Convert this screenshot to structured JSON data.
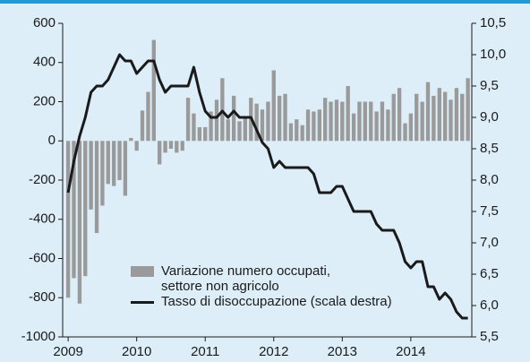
{
  "chart_data": {
    "type": "bar-line",
    "x": [
      2009.0,
      2009.083,
      2009.167,
      2009.25,
      2009.333,
      2009.417,
      2009.5,
      2009.583,
      2009.667,
      2009.75,
      2009.833,
      2009.917,
      2010.0,
      2010.083,
      2010.167,
      2010.25,
      2010.333,
      2010.417,
      2010.5,
      2010.583,
      2010.667,
      2010.75,
      2010.833,
      2010.917,
      2011.0,
      2011.083,
      2011.167,
      2011.25,
      2011.333,
      2011.417,
      2011.5,
      2011.583,
      2011.667,
      2011.75,
      2011.833,
      2011.917,
      2012.0,
      2012.083,
      2012.167,
      2012.25,
      2012.333,
      2012.417,
      2012.5,
      2012.583,
      2012.667,
      2012.75,
      2012.833,
      2012.917,
      2013.0,
      2013.083,
      2013.167,
      2013.25,
      2013.333,
      2013.417,
      2013.5,
      2013.583,
      2013.667,
      2013.75,
      2013.833,
      2013.917,
      2014.0,
      2014.083,
      2014.167,
      2014.25,
      2014.333,
      2014.417,
      2014.5,
      2014.583,
      2014.667,
      2014.75,
      2014.833
    ],
    "series": [
      {
        "name": "Variazione numero occupati, settore non agricolo",
        "kind": "bar",
        "color": "#9a9a9a",
        "values": [
          -800,
          -700,
          -830,
          -690,
          -350,
          -470,
          -330,
          -220,
          -230,
          -200,
          -280,
          15,
          -50,
          155,
          250,
          515,
          -120,
          -60,
          -40,
          -60,
          -50,
          220,
          140,
          70,
          70,
          150,
          210,
          320,
          110,
          230,
          100,
          120,
          220,
          190,
          160,
          200,
          360,
          230,
          240,
          90,
          110,
          80,
          160,
          150,
          160,
          220,
          200,
          210,
          200,
          280,
          140,
          200,
          200,
          200,
          150,
          200,
          160,
          240,
          270,
          90,
          140,
          240,
          200,
          300,
          230,
          270,
          250,
          210,
          270,
          240,
          320
        ]
      },
      {
        "name": "Tasso di disoccupazione (scala destra)",
        "kind": "line",
        "color": "#1a1a1a",
        "axis": "y2",
        "values": [
          7.8,
          8.3,
          8.7,
          9.0,
          9.4,
          9.5,
          9.5,
          9.6,
          9.8,
          10.0,
          9.9,
          9.9,
          9.7,
          9.8,
          9.9,
          9.9,
          9.6,
          9.4,
          9.5,
          9.5,
          9.5,
          9.5,
          9.8,
          9.4,
          9.1,
          9.0,
          9.0,
          9.1,
          9.0,
          9.1,
          9.0,
          9.0,
          9.0,
          8.8,
          8.6,
          8.5,
          8.2,
          8.3,
          8.2,
          8.2,
          8.2,
          8.2,
          8.2,
          8.1,
          7.8,
          7.8,
          7.8,
          7.9,
          7.9,
          7.7,
          7.5,
          7.5,
          7.5,
          7.5,
          7.3,
          7.2,
          7.2,
          7.2,
          7.0,
          6.7,
          6.6,
          6.7,
          6.7,
          6.3,
          6.3,
          6.1,
          6.2,
          6.1,
          5.9,
          5.8,
          5.8
        ]
      }
    ],
    "xlim": [
      2008.92,
      2014.89
    ],
    "xticks": [
      2009,
      2010,
      2011,
      2012,
      2013,
      2014
    ],
    "ylim": [
      -1000,
      600
    ],
    "yticks": [
      -1000,
      -800,
      -600,
      -400,
      -200,
      0,
      200,
      400,
      600
    ],
    "y2lim": [
      5.5,
      10.5
    ],
    "y2ticks": [
      {
        "value": 5.5,
        "label": "5,5"
      },
      {
        "value": 6.0,
        "label": "6,0"
      },
      {
        "value": 6.5,
        "label": "6,5"
      },
      {
        "value": 7.0,
        "label": "7,0"
      },
      {
        "value": 7.5,
        "label": "7,5"
      },
      {
        "value": 8.0,
        "label": "8,0"
      },
      {
        "value": 8.5,
        "label": "8,5"
      },
      {
        "value": 9.0,
        "label": "9,0"
      },
      {
        "value": 9.5,
        "label": "9,5"
      },
      {
        "value": 10.0,
        "label": "10,0"
      },
      {
        "value": 10.5,
        "label": "10,5"
      }
    ],
    "legend": "lower-left"
  }
}
